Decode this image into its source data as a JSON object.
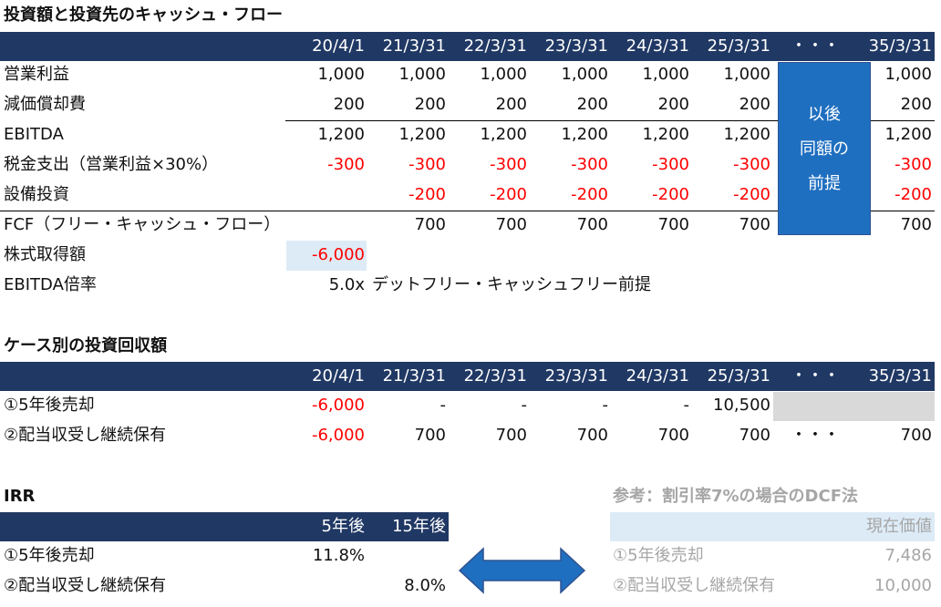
{
  "cashflow": {
    "title": "投資額と投資先のキャッシュ・フロー",
    "header": [
      "20/4/1",
      "21/3/31",
      "22/3/31",
      "23/3/31",
      "24/3/31",
      "25/3/31",
      "・・・",
      "35/3/31"
    ],
    "rows": [
      {
        "label": "営業利益",
        "values": [
          "1,000",
          "1,000",
          "1,000",
          "1,000",
          "1,000",
          "1,000",
          null,
          "1,000"
        ]
      },
      {
        "label": "減価償却費",
        "values": [
          "200",
          "200",
          "200",
          "200",
          "200",
          "200",
          null,
          "200"
        ]
      },
      {
        "label": "EBITDA",
        "values": [
          "1,200",
          "1,200",
          "1,200",
          "1,200",
          "1,200",
          "1,200",
          null,
          "1,200"
        ]
      },
      {
        "label": "税金支出（営業利益×30%）",
        "values": [
          "-300",
          "-300",
          "-300",
          "-300",
          "-300",
          "-300",
          null,
          "-300"
        ]
      },
      {
        "label": "設備投資",
        "values": [
          null,
          "-200",
          "-200",
          "-200",
          "-200",
          "-200",
          null,
          "-200"
        ]
      },
      {
        "label": "FCF（フリー・キャッシュ・フロー）",
        "values": [
          null,
          "700",
          "700",
          "700",
          "700",
          "700",
          null,
          "700"
        ]
      },
      {
        "label": "株式取得額",
        "values": [
          "-6,000",
          null,
          null,
          null,
          null,
          null,
          null,
          null
        ]
      },
      {
        "label": "EBITDA倍率",
        "values": [
          "5.0x",
          null,
          null,
          null,
          null,
          null,
          null,
          null
        ],
        "note": "デットフリー・キャッシュフリー前提"
      }
    ],
    "box": [
      "以後",
      "同額の",
      "前提"
    ]
  },
  "cases": {
    "title": "ケース別の投資回収額",
    "header": [
      "20/4/1",
      "21/3/31",
      "22/3/31",
      "23/3/31",
      "24/3/31",
      "25/3/31",
      "・・・",
      "35/3/31"
    ],
    "rows": [
      {
        "label": "①5年後売却",
        "values": [
          "-6,000",
          "-",
          "-",
          "-",
          "-",
          "10,500",
          null,
          null
        ]
      },
      {
        "label": "②配当収受し継続保有",
        "values": [
          "-6,000",
          "700",
          "700",
          "700",
          "700",
          "700",
          "・・・",
          "700"
        ]
      }
    ]
  },
  "irr": {
    "title": "IRR",
    "header": [
      "5年後",
      "15年後"
    ],
    "rows": [
      {
        "label": "①5年後売却",
        "values": [
          "11.8%",
          null
        ]
      },
      {
        "label": "②配当収受し継続保有",
        "values": [
          null,
          "8.0%"
        ]
      }
    ]
  },
  "reference": {
    "title": "参考：割引率7%の場合のDCF法",
    "header": "現在価値",
    "rows": [
      {
        "label": "①5年後売却",
        "value": "7,486"
      },
      {
        "label": "②配当収受し継続保有",
        "value": "10,000"
      }
    ]
  }
}
